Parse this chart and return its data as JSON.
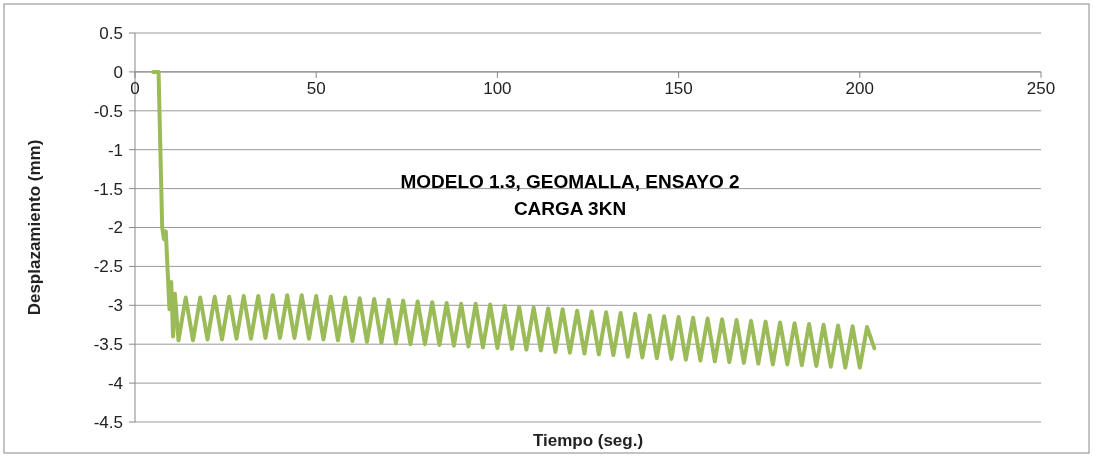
{
  "chart_data": {
    "type": "line",
    "title": "MODELO 1.3, GEOMALLA, ENSAYO 2\nCARGA 3KN",
    "xlabel": "Tiempo (seg.)",
    "ylabel": "Desplazamiento (mm)",
    "xlim": [
      0,
      250
    ],
    "xticks": [
      0,
      50,
      100,
      150,
      200,
      250
    ],
    "ylim": [
      -4.5,
      0.5
    ],
    "yticks": [
      0.5,
      0,
      -0.5,
      -1,
      -1.5,
      -2,
      -2.5,
      -3,
      -3.5,
      -4,
      -4.5
    ],
    "grid": "y",
    "marker": "none",
    "line_style": "solid",
    "series": [
      {
        "color": "#9bbb59",
        "x": [
          5,
          6.5,
          7.5,
          8,
          8.5,
          9.5,
          10,
          10.5,
          11,
          12,
          14,
          16,
          18,
          20,
          22,
          24,
          26,
          28,
          30,
          32,
          34,
          36,
          38,
          40,
          42,
          44,
          46,
          48,
          50,
          52,
          54,
          56,
          58,
          60,
          62,
          64,
          66,
          68,
          70,
          72,
          74,
          76,
          78,
          80,
          82,
          84,
          86,
          88,
          90,
          92,
          94,
          96,
          98,
          100,
          102,
          104,
          106,
          108,
          110,
          112,
          114,
          116,
          118,
          120,
          122,
          124,
          126,
          128,
          130,
          132,
          134,
          136,
          138,
          140,
          142,
          144,
          146,
          148,
          150,
          152,
          154,
          156,
          158,
          160,
          162,
          164,
          166,
          168,
          170,
          172,
          174,
          176,
          178,
          180,
          182,
          184,
          186,
          188,
          190,
          192,
          194,
          196,
          198,
          200,
          202,
          204
        ],
        "values": [
          0,
          0,
          -2.0,
          -2.15,
          -2.05,
          -3.05,
          -2.7,
          -3.4,
          -2.85,
          -3.45,
          -2.9,
          -3.45,
          -2.9,
          -3.44,
          -2.89,
          -3.44,
          -2.89,
          -3.43,
          -2.88,
          -3.43,
          -2.88,
          -3.42,
          -2.87,
          -3.42,
          -2.87,
          -3.42,
          -2.87,
          -3.43,
          -2.88,
          -3.44,
          -2.89,
          -3.45,
          -2.9,
          -3.46,
          -2.91,
          -3.47,
          -2.92,
          -3.48,
          -2.93,
          -3.49,
          -2.94,
          -3.5,
          -2.95,
          -3.5,
          -2.96,
          -3.51,
          -2.97,
          -3.52,
          -2.98,
          -3.53,
          -2.98,
          -3.54,
          -2.99,
          -3.55,
          -3.01,
          -3.56,
          -3.02,
          -3.57,
          -3.03,
          -3.58,
          -3.04,
          -3.6,
          -3.05,
          -3.61,
          -3.07,
          -3.62,
          -3.08,
          -3.63,
          -3.09,
          -3.64,
          -3.1,
          -3.66,
          -3.11,
          -3.67,
          -3.13,
          -3.68,
          -3.14,
          -3.69,
          -3.15,
          -3.7,
          -3.16,
          -3.71,
          -3.17,
          -3.72,
          -3.18,
          -3.73,
          -3.19,
          -3.74,
          -3.2,
          -3.75,
          -3.21,
          -3.76,
          -3.22,
          -3.76,
          -3.23,
          -3.77,
          -3.24,
          -3.78,
          -3.25,
          -3.79,
          -3.26,
          -3.8,
          -3.27,
          -3.8,
          -3.28,
          -3.55
        ]
      }
    ]
  }
}
